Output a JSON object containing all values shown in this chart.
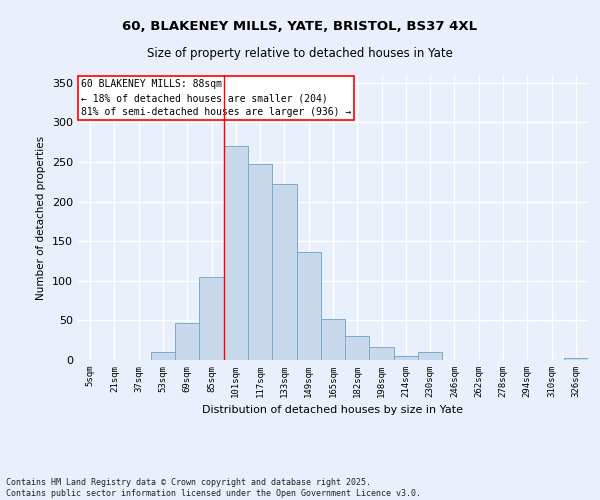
{
  "title1": "60, BLAKENEY MILLS, YATE, BRISTOL, BS37 4XL",
  "title2": "Size of property relative to detached houses in Yate",
  "xlabel": "Distribution of detached houses by size in Yate",
  "ylabel": "Number of detached properties",
  "categories": [
    "5sqm",
    "21sqm",
    "37sqm",
    "53sqm",
    "69sqm",
    "85sqm",
    "101sqm",
    "117sqm",
    "133sqm",
    "149sqm",
    "165sqm",
    "182sqm",
    "198sqm",
    "214sqm",
    "230sqm",
    "246sqm",
    "262sqm",
    "278sqm",
    "294sqm",
    "310sqm",
    "326sqm"
  ],
  "values": [
    0,
    0,
    0,
    10,
    47,
    105,
    270,
    247,
    222,
    136,
    52,
    30,
    16,
    5,
    10,
    0,
    0,
    0,
    0,
    0,
    3
  ],
  "bar_color": "#c9d9ec",
  "bar_edge_color": "#7aaacf",
  "background_color": "#eaf0fb",
  "grid_color": "#ffffff",
  "red_line_x": 5.5,
  "annotation_title": "60 BLAKENEY MILLS: 88sqm",
  "annotation_line1": "← 18% of detached houses are smaller (204)",
  "annotation_line2": "81% of semi-detached houses are larger (936) →",
  "footer": "Contains HM Land Registry data © Crown copyright and database right 2025.\nContains public sector information licensed under the Open Government Licence v3.0.",
  "ylim": [
    0,
    360
  ],
  "yticks": [
    0,
    50,
    100,
    150,
    200,
    250,
    300,
    350
  ]
}
